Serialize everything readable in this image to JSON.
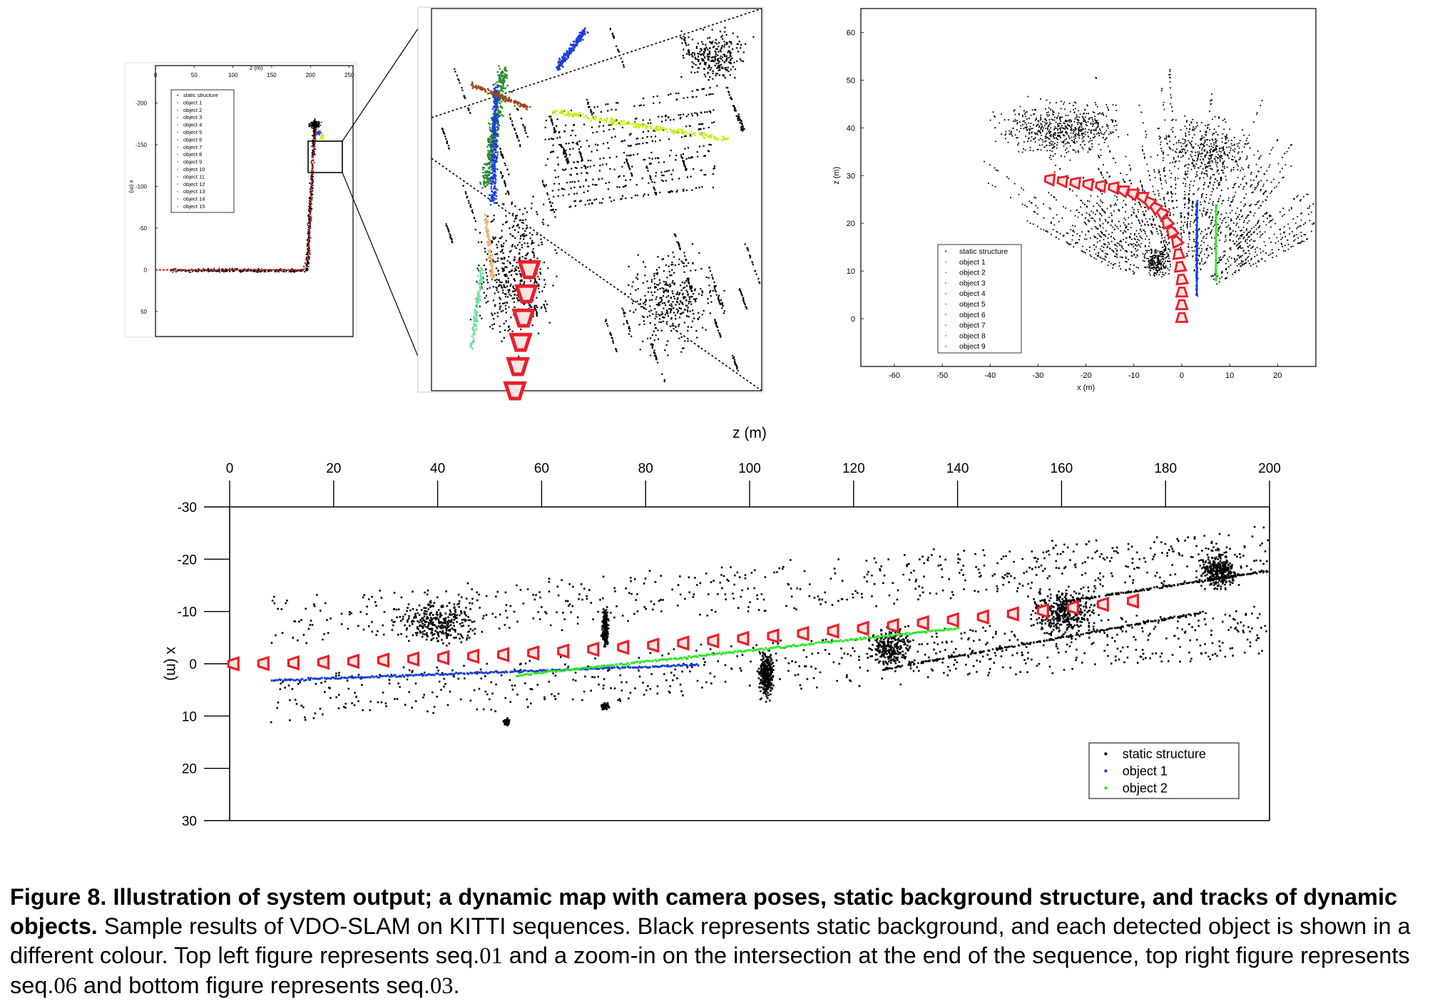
{
  "figure": {
    "caption_bold": "Figure 8.  Illustration of system output; a dynamic map with camera poses, static background structure, and tracks of dynamic objects.",
    "caption_text_1": " Sample results of VDO-SLAM on KITTI sequences. Black represents static background, and each detected object is shown in a different colour. Top left figure represents seq.",
    "caption_seq_a": "01",
    "caption_text_2": " and a zoom-in on the intersection at the end of the sequence, top right figure represents seq.",
    "caption_seq_b": "06",
    "caption_text_3": " and bottom figure represents seq.",
    "caption_seq_c": "03",
    "caption_text_4": "."
  },
  "colors": {
    "static": "#000000",
    "camera": "#e8202a",
    "object_1": "#1a3fd8",
    "object_2": "#2ee82a",
    "object_2_tl": "#2a8a2a",
    "object_brown": "#9a4a16",
    "object_yellow": "#c8ee1a",
    "object_orange": "#f0b070",
    "object_mint": "#70e0a0"
  },
  "chart_data": [
    {
      "id": "top-left",
      "type": "scatter",
      "title": "",
      "xlabel": "z (m)",
      "ylabel": "x (m)",
      "xlim": [
        0,
        255
      ],
      "ylim": [
        -245,
        80
      ],
      "y_inverted": true,
      "x_ticks": [
        0,
        50,
        100,
        150,
        200,
        250
      ],
      "y_ticks": [
        -200,
        -150,
        -100,
        -50,
        0,
        50
      ],
      "legend": [
        "static structure",
        "object  1",
        "object  2",
        "object  3",
        "object  4",
        "object  5",
        "object  6",
        "object  7",
        "object  8",
        "object  9",
        "object  10",
        "object  11",
        "object  12",
        "object  13",
        "object  14",
        "object  15"
      ],
      "camera_path": [
        [
          0,
          0
        ],
        [
          60,
          0
        ],
        [
          120,
          0
        ],
        [
          190,
          0
        ],
        [
          198,
          -20
        ],
        [
          200,
          -70
        ],
        [
          203,
          -130
        ],
        [
          208,
          -170
        ]
      ]
    },
    {
      "id": "top-right",
      "type": "scatter",
      "title": "",
      "xlabel": "x (m)",
      "ylabel": "z (m)",
      "xlim": [
        -67,
        28
      ],
      "ylim": [
        -10,
        65
      ],
      "x_ticks": [
        -60,
        -50,
        -40,
        -30,
        -20,
        -10,
        0,
        10,
        20
      ],
      "y_ticks": [
        0,
        10,
        20,
        30,
        40,
        50,
        60
      ],
      "legend": [
        "static structure",
        "object  1",
        "object  2",
        "object  3",
        "object  4",
        "object  5",
        "object  6",
        "object  7",
        "object  8",
        "object  9"
      ],
      "camera_path": [
        [
          0,
          0
        ],
        [
          0,
          8
        ],
        [
          -1,
          16
        ],
        [
          -4,
          22
        ],
        [
          -8,
          25.5
        ],
        [
          -14,
          27.5
        ],
        [
          -22,
          28.5
        ],
        [
          -30,
          29.5
        ]
      ],
      "object_tracks": [
        {
          "name": "object  1",
          "x": 3,
          "z_range": [
            5,
            25
          ]
        },
        {
          "name": "object  2",
          "x": 7,
          "z_range": [
            8,
            24
          ]
        }
      ]
    },
    {
      "id": "bottom",
      "type": "scatter",
      "title": "",
      "xlabel": "z (m)",
      "ylabel": "x (m)",
      "xlim": [
        0,
        200
      ],
      "ylim": [
        -30,
        30
      ],
      "y_inverted": true,
      "x_ticks": [
        0,
        20,
        40,
        60,
        80,
        100,
        120,
        140,
        160,
        180,
        200
      ],
      "y_ticks": [
        -30,
        -20,
        -10,
        0,
        10,
        20,
        30
      ],
      "legend": [
        "static structure",
        "object  1",
        "object  2"
      ],
      "camera_path": [
        [
          1,
          0
        ],
        [
          174,
          -12
        ]
      ],
      "object_1_track": [
        [
          8,
          3
        ],
        [
          90,
          0
        ]
      ],
      "object_2_track": [
        [
          55,
          2
        ],
        [
          140,
          -7
        ]
      ]
    }
  ]
}
